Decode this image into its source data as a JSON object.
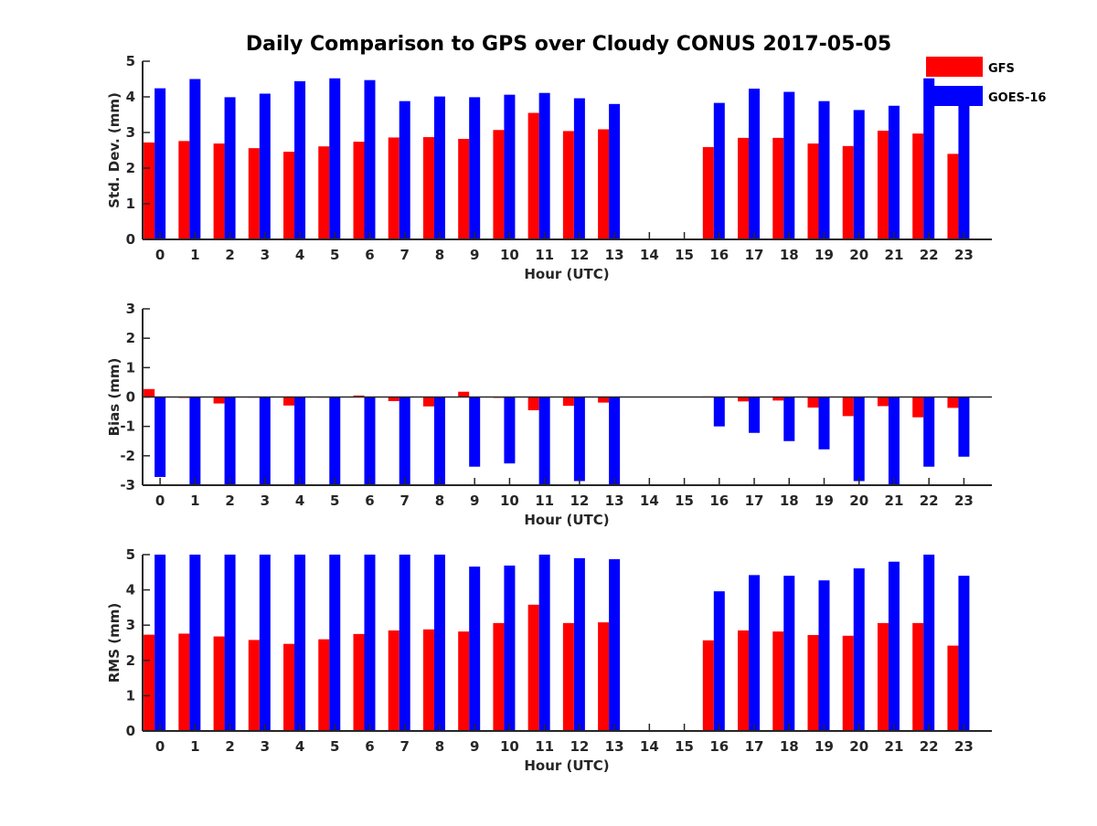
{
  "chart_data": {
    "type": "bar",
    "title": "Daily Comparison to GPS over Cloudy CONUS 2017-05-05",
    "legend": {
      "placement": "top-right",
      "entries": [
        {
          "name": "GFS",
          "color": "#ff0000"
        },
        {
          "name": "GOES-16",
          "color": "#0000ff"
        }
      ]
    },
    "categories": [
      "0",
      "1",
      "2",
      "3",
      "4",
      "5",
      "6",
      "7",
      "8",
      "9",
      "10",
      "11",
      "12",
      "13",
      "14",
      "15",
      "16",
      "17",
      "18",
      "19",
      "20",
      "21",
      "22",
      "23"
    ],
    "panels": [
      {
        "ylabel": "Std. Dev. (mm)",
        "xlabel": "Hour (UTC)",
        "ylim": [
          0,
          5
        ],
        "yticks": [
          "0",
          "1",
          "2",
          "3",
          "4",
          "5"
        ],
        "series": [
          {
            "name": "GFS",
            "values": [
              2.72,
              2.76,
              2.69,
              2.56,
              2.46,
              2.61,
              2.74,
              2.86,
              2.87,
              2.82,
              3.07,
              3.55,
              3.04,
              3.09,
              null,
              null,
              2.59,
              2.85,
              2.85,
              2.69,
              2.62,
              3.05,
              2.97,
              2.4
            ]
          },
          {
            "name": "GOES-16",
            "values": [
              4.24,
              4.5,
              3.99,
              4.09,
              4.44,
              4.52,
              4.47,
              3.88,
              4.01,
              3.99,
              4.06,
              4.11,
              3.96,
              3.8,
              null,
              null,
              3.83,
              4.23,
              4.14,
              3.88,
              3.63,
              3.75,
              4.52,
              3.88
            ]
          }
        ]
      },
      {
        "ylabel": "Bias (mm)",
        "xlabel": "Hour (UTC)",
        "ylim": [
          -3,
          3
        ],
        "yticks": [
          "-3",
          "-2",
          "-1",
          "0",
          "1",
          "2",
          "3"
        ],
        "series": [
          {
            "name": "GFS",
            "values": [
              0.27,
              -0.03,
              -0.22,
              -0.02,
              -0.29,
              -0.02,
              0.05,
              -0.14,
              -0.32,
              0.18,
              -0.03,
              -0.45,
              -0.3,
              -0.19,
              null,
              null,
              0.02,
              -0.15,
              -0.12,
              -0.36,
              -0.65,
              -0.31,
              -0.69,
              -0.37
            ]
          },
          {
            "name": "GOES-16",
            "values": [
              -2.72,
              -3.0,
              -3.0,
              -3.0,
              -3.0,
              -3.0,
              -3.0,
              -3.0,
              -3.0,
              -2.37,
              -2.26,
              -3.0,
              -2.86,
              -3.0,
              null,
              null,
              -1.0,
              -1.22,
              -1.5,
              -1.78,
              -2.86,
              -3.0,
              -2.37,
              -2.03
            ]
          }
        ]
      },
      {
        "ylabel": "RMS (mm)",
        "xlabel": "Hour (UTC)",
        "ylim": [
          0,
          5
        ],
        "yticks": [
          "0",
          "1",
          "2",
          "3",
          "4",
          "5"
        ],
        "series": [
          {
            "name": "GFS",
            "values": [
              2.73,
              2.76,
              2.68,
              2.58,
              2.47,
              2.6,
              2.75,
              2.85,
              2.88,
              2.82,
              3.06,
              3.58,
              3.06,
              3.08,
              null,
              null,
              2.57,
              2.85,
              2.82,
              2.72,
              2.7,
              3.06,
              3.06,
              2.42
            ]
          },
          {
            "name": "GOES-16",
            "values": [
              5.0,
              5.0,
              5.0,
              5.0,
              5.0,
              5.0,
              5.0,
              5.0,
              5.0,
              4.66,
              4.69,
              5.0,
              4.9,
              4.87,
              null,
              null,
              3.96,
              4.42,
              4.4,
              4.27,
              4.61,
              4.8,
              5.0,
              4.4
            ]
          }
        ]
      }
    ]
  }
}
